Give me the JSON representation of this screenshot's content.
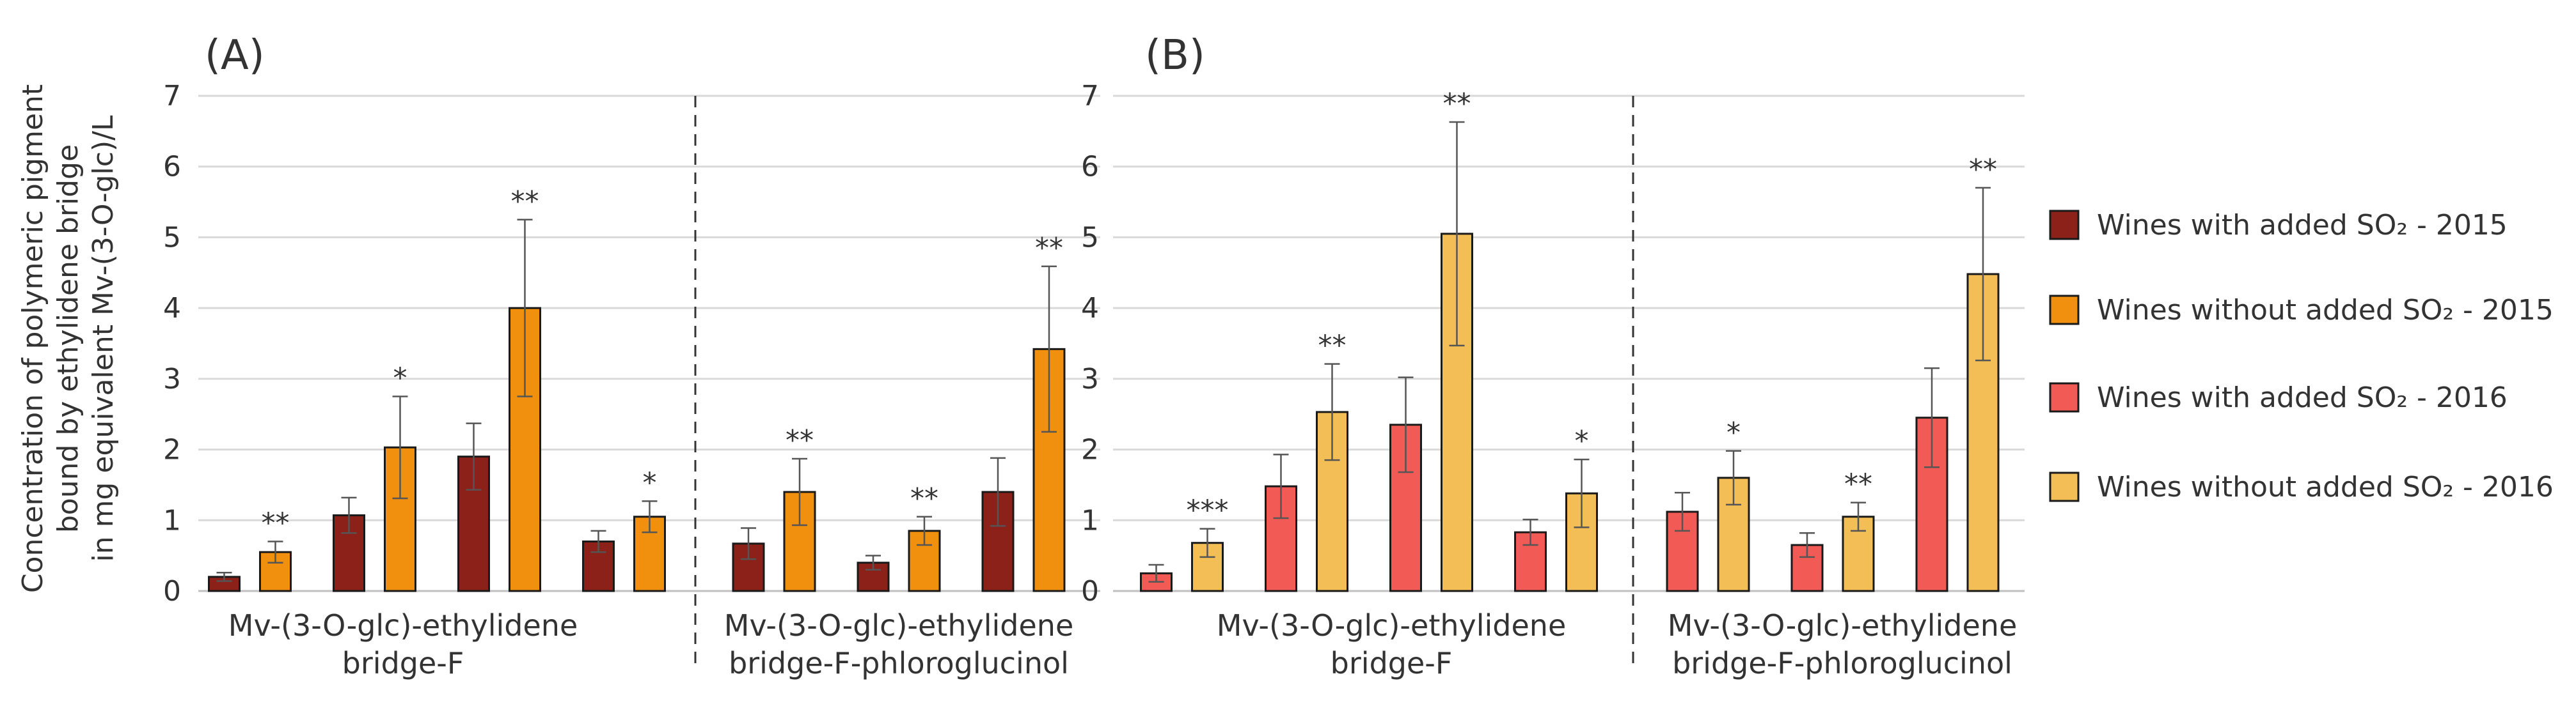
{
  "chart_data": {
    "type": "bar",
    "y_axis_label_lines": [
      "Concentration of polymeric pigment",
      "bound by ethylidene bridge",
      "in mg equivalent Mv-(3-O-glc)/L"
    ],
    "ylim": [
      0,
      7
    ],
    "yticks": [
      0,
      1,
      2,
      3,
      4,
      5,
      6,
      7
    ],
    "grid": true,
    "legend_position": "right",
    "legend": [
      {
        "label": "Wines with added SO₂ - 2015",
        "color": "#8B2119"
      },
      {
        "label": "Wines without added SO₂ - 2015",
        "color": "#F0900E"
      },
      {
        "label": "Wines with added SO₂ - 2016",
        "color": "#F25B55"
      },
      {
        "label": "Wines without added SO₂ - 2016",
        "color": "#F2BE55"
      }
    ],
    "panels": [
      {
        "label": "(A)",
        "series_colors": [
          "#8B2119",
          "#F0900E"
        ],
        "groups": [
          {
            "label_lines": [
              "Mv-(3-O-glc)-ethylidene",
              "bridge-F"
            ],
            "pairs": [
              {
                "values": [
                  0.2,
                  0.55
                ],
                "errors": [
                  0.06,
                  0.15
                ],
                "sig": "**"
              },
              {
                "values": [
                  1.07,
                  2.03
                ],
                "errors": [
                  0.25,
                  0.72
                ],
                "sig": "*"
              },
              {
                "values": [
                  1.9,
                  4.0
                ],
                "errors": [
                  0.47,
                  1.25
                ],
                "sig": "**"
              },
              {
                "values": [
                  0.7,
                  1.05
                ],
                "errors": [
                  0.15,
                  0.22
                ],
                "sig": "*"
              }
            ]
          },
          {
            "label_lines": [
              "Mv-(3-O-glc)-ethylidene",
              "bridge-F-phloroglucinol"
            ],
            "pairs": [
              {
                "values": [
                  0.67,
                  1.4
                ],
                "errors": [
                  0.22,
                  0.47
                ],
                "sig": "**"
              },
              {
                "values": [
                  0.4,
                  0.85
                ],
                "errors": [
                  0.1,
                  0.2
                ],
                "sig": "**"
              },
              {
                "values": [
                  1.4,
                  3.42
                ],
                "errors": [
                  0.48,
                  1.17
                ],
                "sig": "**"
              }
            ]
          }
        ]
      },
      {
        "label": "(B)",
        "series_colors": [
          "#F25B55",
          "#F2BE55"
        ],
        "groups": [
          {
            "label_lines": [
              "Mv-(3-O-glc)-ethylidene",
              "bridge-F"
            ],
            "pairs": [
              {
                "values": [
                  0.25,
                  0.68
                ],
                "errors": [
                  0.12,
                  0.2
                ],
                "sig": "***"
              },
              {
                "values": [
                  1.48,
                  2.53
                ],
                "errors": [
                  0.45,
                  0.68
                ],
                "sig": "**"
              },
              {
                "values": [
                  2.35,
                  5.05
                ],
                "errors": [
                  0.67,
                  1.58
                ],
                "sig": "**"
              },
              {
                "values": [
                  0.83,
                  1.38
                ],
                "errors": [
                  0.18,
                  0.48
                ],
                "sig": "*"
              }
            ]
          },
          {
            "label_lines": [
              "Mv-(3-O-glc)-ethylidene",
              "bridge-F-phloroglucinol"
            ],
            "pairs": [
              {
                "values": [
                  1.12,
                  1.6
                ],
                "errors": [
                  0.27,
                  0.38
                ],
                "sig": "*"
              },
              {
                "values": [
                  0.65,
                  1.05
                ],
                "errors": [
                  0.17,
                  0.2
                ],
                "sig": "**"
              },
              {
                "values": [
                  2.45,
                  4.48
                ],
                "errors": [
                  0.7,
                  1.22
                ],
                "sig": "**"
              }
            ]
          }
        ]
      }
    ]
  }
}
